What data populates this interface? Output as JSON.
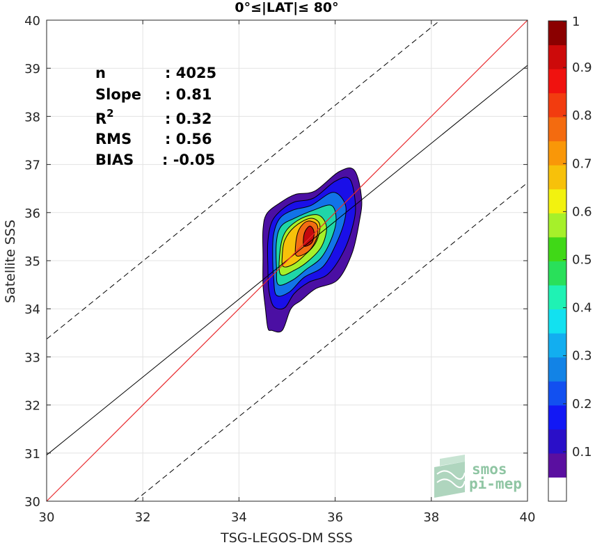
{
  "chart_data": {
    "type": "scatter",
    "title": "0°≤|LAT|≤ 80°",
    "xlabel": "TSG-LEGOS-DM SSS",
    "ylabel": "Satellite SSS",
    "xlim": [
      30,
      40
    ],
    "ylim": [
      30,
      40
    ],
    "xticks": [
      "30",
      "32",
      "34",
      "36",
      "38",
      "40"
    ],
    "yticks": [
      "30",
      "31",
      "32",
      "33",
      "34",
      "35",
      "36",
      "37",
      "38",
      "39",
      "40"
    ],
    "grid": true,
    "stats": [
      {
        "name": "n",
        "value": ": 4025"
      },
      {
        "name": "Slope",
        "value": ": 0.81"
      },
      {
        "name": "R",
        "sup": "2",
        "value": ": 0.32"
      },
      {
        "name": "RMS",
        "value": ": 0.56"
      },
      {
        "name": "BIAS",
        "value": ": -0.05"
      }
    ],
    "lines": {
      "identity": {
        "color": "#e8262a",
        "points": [
          [
            30,
            30
          ],
          [
            40,
            40
          ]
        ]
      },
      "regression": {
        "color": "#000000",
        "slope": 0.81,
        "intercept": 6.66
      },
      "regression_upper": {
        "dashed": true,
        "slope": 0.81,
        "intercept": 9.07
      },
      "regression_lower": {
        "dashed": true,
        "slope": 0.81,
        "intercept": 4.22
      }
    },
    "density_contours": [
      {
        "level": 0.05,
        "color": "#4b0fa3",
        "points": [
          [
            34.68,
            33.55
          ],
          [
            34.9,
            33.55
          ],
          [
            35.08,
            34.0
          ],
          [
            35.3,
            34.18
          ],
          [
            35.6,
            34.42
          ],
          [
            36.05,
            34.6
          ],
          [
            36.35,
            35.15
          ],
          [
            36.5,
            35.8
          ],
          [
            36.55,
            36.3
          ],
          [
            36.4,
            36.88
          ],
          [
            36.08,
            36.85
          ],
          [
            35.58,
            36.45
          ],
          [
            35.18,
            36.38
          ],
          [
            34.88,
            36.22
          ],
          [
            34.58,
            35.98
          ],
          [
            34.5,
            35.65
          ],
          [
            34.5,
            35.1
          ],
          [
            34.5,
            34.5
          ],
          [
            34.55,
            34.0
          ],
          [
            34.6,
            33.6
          ]
        ]
      },
      {
        "level": 0.15,
        "color": "#1a0fe8",
        "points": [
          [
            34.72,
            34.05
          ],
          [
            34.95,
            34.02
          ],
          [
            35.15,
            34.32
          ],
          [
            35.45,
            34.55
          ],
          [
            35.85,
            34.72
          ],
          [
            36.18,
            35.2
          ],
          [
            36.38,
            35.78
          ],
          [
            36.42,
            36.2
          ],
          [
            36.3,
            36.7
          ],
          [
            36.0,
            36.65
          ],
          [
            35.55,
            36.3
          ],
          [
            35.15,
            36.22
          ],
          [
            34.88,
            36.05
          ],
          [
            34.68,
            35.8
          ],
          [
            34.6,
            35.4
          ],
          [
            34.6,
            34.9
          ],
          [
            34.62,
            34.4
          ]
        ]
      },
      {
        "level": 0.3,
        "color": "#1273e8",
        "points": [
          [
            34.78,
            34.28
          ],
          [
            35.05,
            34.35
          ],
          [
            35.35,
            34.65
          ],
          [
            35.75,
            34.88
          ],
          [
            36.02,
            35.35
          ],
          [
            36.2,
            35.85
          ],
          [
            36.2,
            36.2
          ],
          [
            35.95,
            36.42
          ],
          [
            35.5,
            36.15
          ],
          [
            35.12,
            36.05
          ],
          [
            34.85,
            35.88
          ],
          [
            34.72,
            35.55
          ],
          [
            34.7,
            35.1
          ],
          [
            34.72,
            34.65
          ]
        ]
      },
      {
        "level": 0.45,
        "color": "#1fd6a8",
        "points": [
          [
            34.82,
            34.5
          ],
          [
            35.12,
            34.6
          ],
          [
            35.4,
            34.82
          ],
          [
            35.7,
            35.05
          ],
          [
            35.92,
            35.45
          ],
          [
            36.02,
            35.85
          ],
          [
            35.92,
            36.15
          ],
          [
            35.55,
            36.05
          ],
          [
            35.15,
            35.88
          ],
          [
            34.88,
            35.72
          ],
          [
            34.78,
            35.4
          ],
          [
            34.78,
            34.85
          ]
        ]
      },
      {
        "level": 0.6,
        "color": "#a6f02a",
        "points": [
          [
            34.86,
            34.72
          ],
          [
            35.15,
            34.8
          ],
          [
            35.45,
            35.0
          ],
          [
            35.72,
            35.3
          ],
          [
            35.82,
            35.7
          ],
          [
            35.65,
            35.95
          ],
          [
            35.3,
            35.88
          ],
          [
            34.98,
            35.62
          ],
          [
            34.86,
            35.25
          ]
        ]
      },
      {
        "level": 0.7,
        "color": "#f7c10a",
        "points": [
          [
            34.92,
            34.88
          ],
          [
            35.12,
            34.92
          ],
          [
            35.35,
            35.1
          ],
          [
            35.6,
            35.38
          ],
          [
            35.68,
            35.75
          ],
          [
            35.48,
            35.88
          ],
          [
            35.15,
            35.7
          ],
          [
            34.95,
            35.42
          ],
          [
            34.9,
            35.1
          ]
        ]
      },
      {
        "level": 0.8,
        "color": "#f26d12",
        "points": [
          [
            35.2,
            35.1
          ],
          [
            35.45,
            35.2
          ],
          [
            35.62,
            35.48
          ],
          [
            35.62,
            35.75
          ],
          [
            35.42,
            35.82
          ],
          [
            35.25,
            35.65
          ],
          [
            35.18,
            35.35
          ]
        ]
      },
      {
        "level": 0.95,
        "color": "#c4090d",
        "points": [
          [
            35.36,
            35.3
          ],
          [
            35.52,
            35.38
          ],
          [
            35.56,
            35.6
          ],
          [
            35.48,
            35.72
          ],
          [
            35.38,
            35.62
          ],
          [
            35.34,
            35.45
          ]
        ]
      }
    ],
    "colorbar": {
      "labels": [
        "0.1",
        "0.2",
        "0.3",
        "0.4",
        "0.5",
        "0.6",
        "0.7",
        "0.8",
        "0.9",
        "1"
      ],
      "colors": [
        "#ffffff",
        "#5a0fa0",
        "#2a0fc8",
        "#1218f5",
        "#1250f0",
        "#1283e6",
        "#12aef0",
        "#12e1f0",
        "#1ff2b4",
        "#29e05a",
        "#40d817",
        "#a6f02a",
        "#f2f20f",
        "#f7c10a",
        "#f99708",
        "#f46b0f",
        "#f23c0f",
        "#f0120f",
        "#cd0a0a",
        "#8b0000"
      ]
    },
    "logo": {
      "line1": "smos",
      "line2": "pi-mep"
    }
  }
}
